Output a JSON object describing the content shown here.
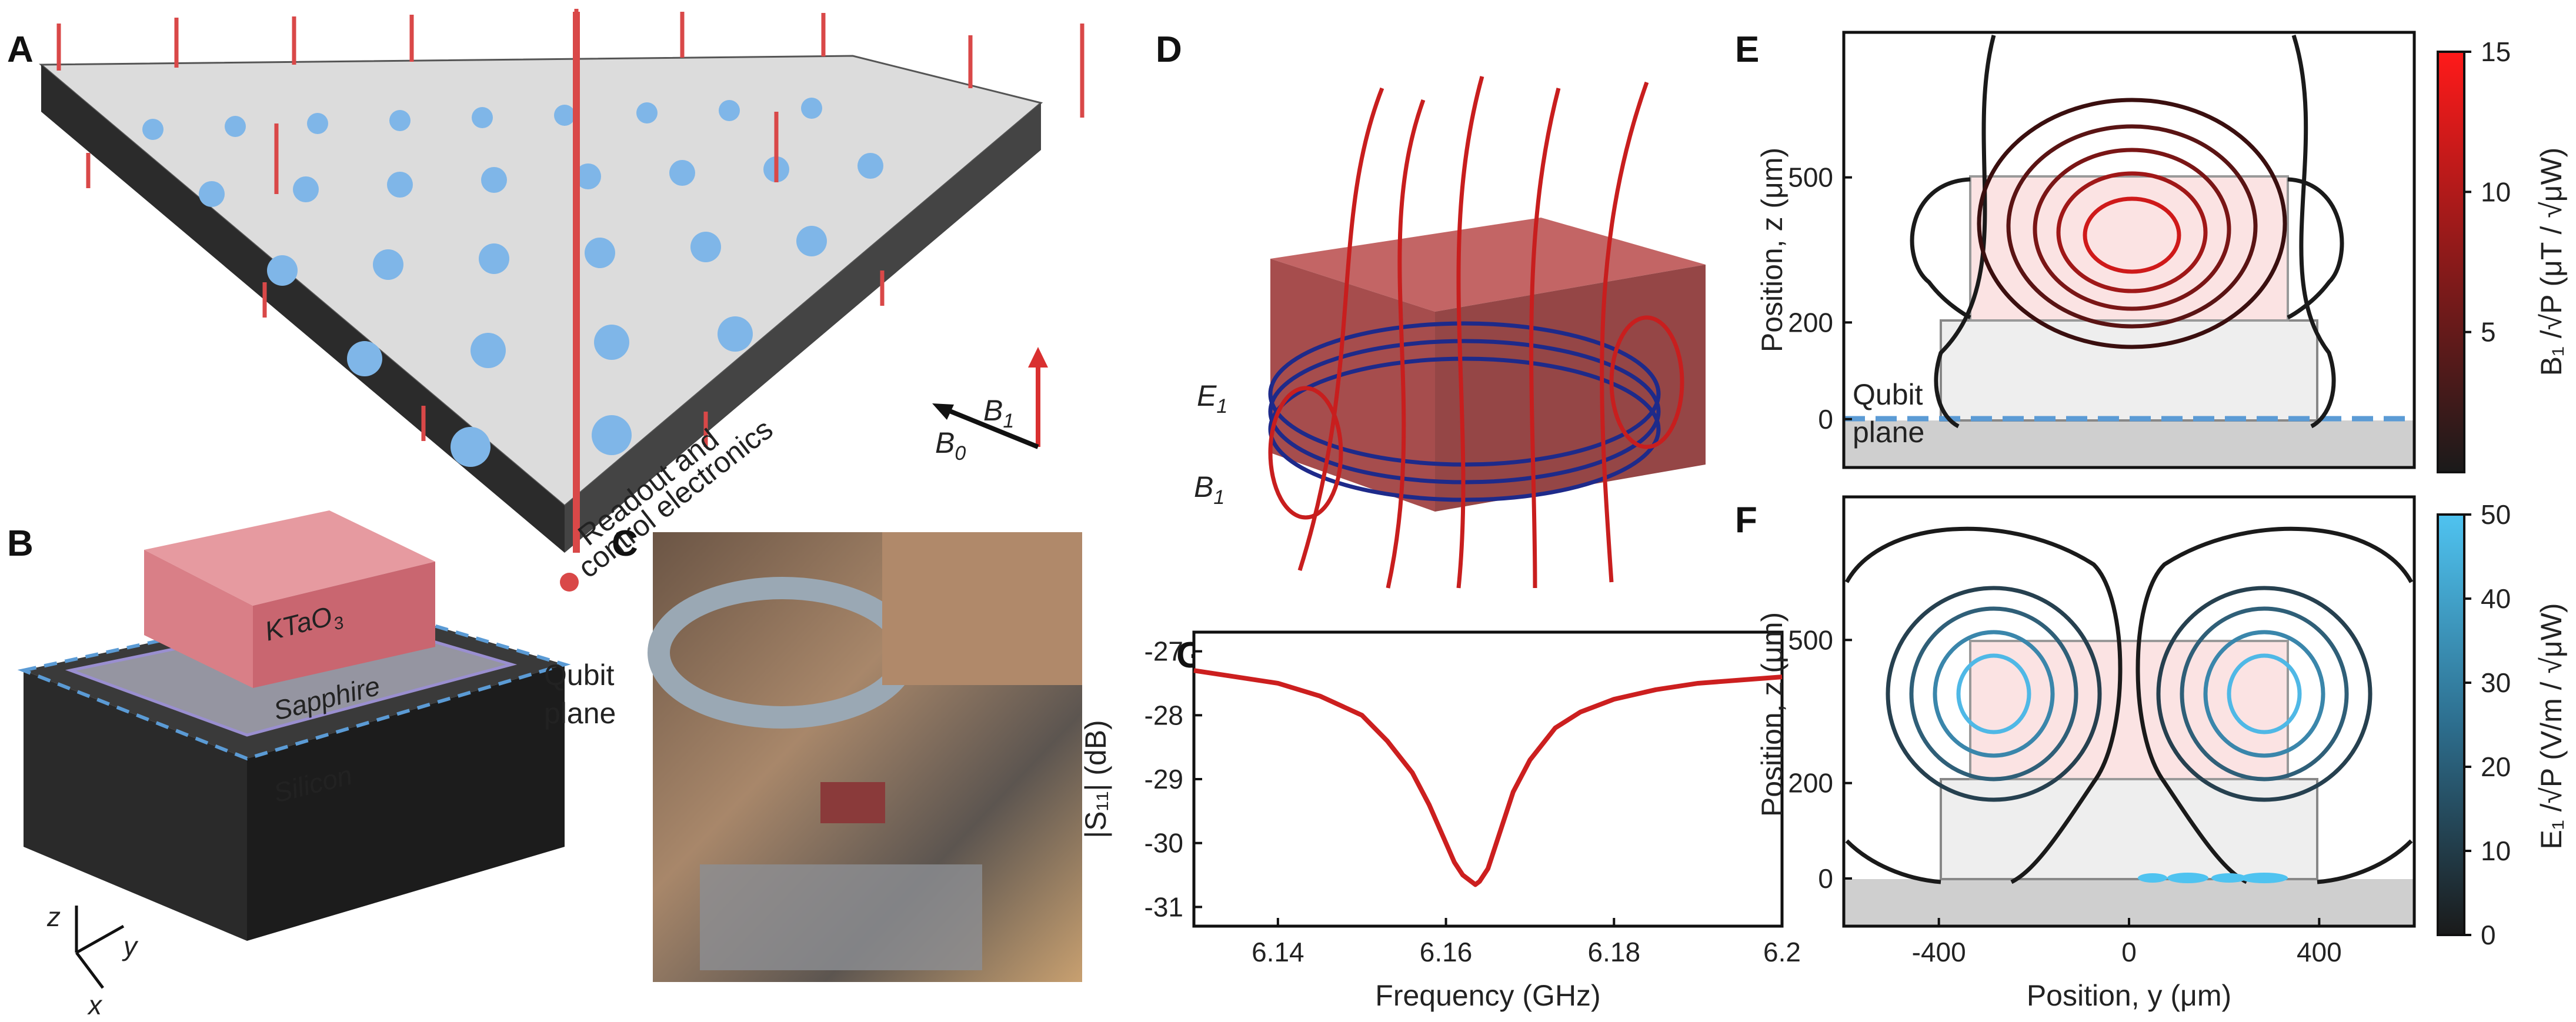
{
  "panels": {
    "A": {
      "label": "A",
      "text1": "Readout and",
      "text2": "control electronics",
      "b1": "B",
      "b1_sub": "1",
      "b0": "B",
      "b0_sub": "0"
    },
    "B": {
      "label": "B",
      "crystal": "KTaO",
      "crystal_sub": "3",
      "sapphire": "Sapphire",
      "silicon": "Silicon",
      "qubit1": "Qubit",
      "qubit2": "plane",
      "axis_z": "z",
      "axis_y": "y",
      "axis_x": "x"
    },
    "C": {
      "label": "C"
    },
    "D": {
      "label": "D",
      "e1": "E",
      "e1_sub": "1",
      "b1": "B",
      "b1_sub": "1"
    },
    "E": {
      "label": "E",
      "ylabel": "Position, z (μm)",
      "cbar_label": "B₁ /√P (μT / √μW)",
      "qubit1": "Qubit",
      "qubit2": "plane"
    },
    "F": {
      "label": "F",
      "ylabel": "Position, z (μm)",
      "xlabel": "Position, y (μm)",
      "cbar_label": "E₁ /√P (V/m / √μW)"
    },
    "G": {
      "label": "G"
    }
  },
  "colors": {
    "red": "#cc1f1f",
    "blue": "#5b9bd5",
    "navy": "#1e2a8a",
    "grey": "#333333"
  },
  "chart_data": [
    {
      "id": "G",
      "type": "line",
      "title": "",
      "xlabel": "Frequency (GHz)",
      "ylabel": "|S₁₁| (dB)",
      "xlim": [
        6.13,
        6.2
      ],
      "ylim": [
        -31.3,
        -26.7
      ],
      "xticks": [
        6.14,
        6.16,
        6.18,
        6.2
      ],
      "xtick_labels": [
        "6.14",
        "6.16",
        "6.18",
        "6.2"
      ],
      "yticks": [
        -27,
        -28,
        -29,
        -30,
        -31
      ],
      "ytick_labels": [
        "-27",
        "-28",
        "-29",
        "-30",
        "-31"
      ],
      "series": [
        {
          "name": "S11",
          "color": "#cc1f1f",
          "x": [
            6.13,
            6.135,
            6.14,
            6.145,
            6.15,
            6.153,
            6.156,
            6.158,
            6.16,
            6.161,
            6.162,
            6.163,
            6.1635,
            6.164,
            6.165,
            6.166,
            6.167,
            6.168,
            6.17,
            6.173,
            6.176,
            6.18,
            6.185,
            6.19,
            6.195,
            6.2
          ],
          "y": [
            -27.3,
            -27.4,
            -27.5,
            -27.7,
            -28.0,
            -28.4,
            -28.9,
            -29.4,
            -30.0,
            -30.3,
            -30.5,
            -30.6,
            -30.65,
            -30.6,
            -30.4,
            -30.0,
            -29.6,
            -29.2,
            -28.7,
            -28.2,
            -27.95,
            -27.75,
            -27.6,
            -27.5,
            -27.45,
            -27.4
          ]
        }
      ]
    },
    {
      "id": "E",
      "type": "contour",
      "xlim": [
        -600,
        600
      ],
      "ylim": [
        -100,
        800
      ],
      "yticks": [
        0,
        200,
        500
      ],
      "ytick_labels": [
        "0",
        "200",
        "500"
      ],
      "colorbar": {
        "min": 0,
        "max": 15,
        "ticks": [
          5,
          10,
          15
        ],
        "tick_labels": [
          "5",
          "10",
          "15"
        ]
      }
    },
    {
      "id": "F",
      "type": "contour",
      "xlim": [
        -600,
        600
      ],
      "ylim": [
        -100,
        800
      ],
      "xticks": [
        -400,
        0,
        400
      ],
      "xtick_labels": [
        "-400",
        "0",
        "400"
      ],
      "yticks": [
        0,
        200,
        500
      ],
      "ytick_labels": [
        "0",
        "200",
        "500"
      ],
      "colorbar": {
        "min": 0,
        "max": 50,
        "ticks": [
          0,
          10,
          20,
          30,
          40,
          50
        ],
        "tick_labels": [
          "0",
          "10",
          "20",
          "30",
          "40",
          "50"
        ]
      }
    }
  ]
}
